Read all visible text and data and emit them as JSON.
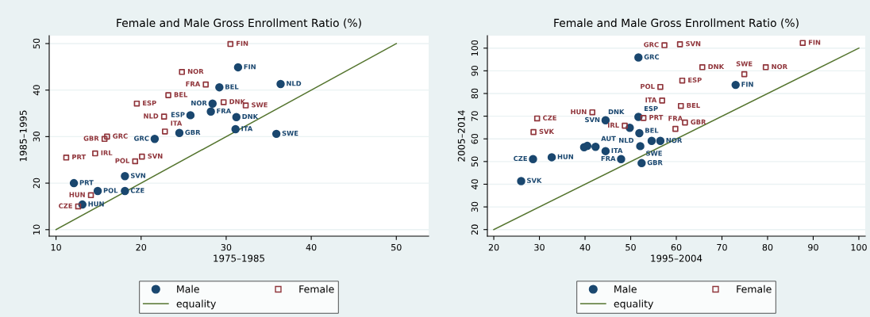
{
  "chart_data": [
    {
      "type": "scatter",
      "title": "Female and Male Gross Enrollment Ratio (%)",
      "xlabel": "1975–1985",
      "ylabel": "1985–1995",
      "xlim": [
        9.2,
        53.8
      ],
      "ylim": [
        8.6,
        51.7
      ],
      "xticks": [
        10,
        20,
        30,
        40,
        50
      ],
      "yticks": [
        10,
        20,
        30,
        40,
        50
      ],
      "grid": "y",
      "legend": "bottom",
      "series": [
        {
          "name": "Male",
          "color": "#1a476f",
          "marker": "circle",
          "x": [
            31.4,
            29.2,
            36.4,
            28.4,
            28.2,
            25.8,
            31.2,
            31.1,
            35.9,
            24.5,
            21.6,
            18.1,
            12.1,
            14.9,
            18.1,
            13.1
          ],
          "values": [
            44.9,
            40.6,
            41.3,
            37.1,
            35.4,
            34.6,
            34.2,
            31.6,
            30.6,
            30.8,
            29.5,
            21.5,
            20.0,
            18.3,
            18.3,
            15.4
          ],
          "value_labels": [
            "FIN",
            "BEL",
            "NLD",
            "NOR",
            "FRA",
            "ESP",
            "DNK",
            "ITA",
            "SWE",
            "GBR",
            "GRC",
            "SVN",
            "PRT",
            "POL",
            "CZE",
            "HUN"
          ]
        },
        {
          "name": "Female",
          "color": "#90353b",
          "marker": "square",
          "x": [
            30.5,
            24.8,
            27.6,
            23.2,
            19.5,
            29.7,
            32.3,
            22.7,
            22.8,
            16.0,
            15.7,
            11.2,
            14.6,
            20.1,
            19.3,
            14.1,
            12.6
          ],
          "values": [
            49.9,
            43.9,
            41.2,
            38.9,
            37.1,
            37.4,
            36.7,
            34.3,
            31.1,
            30.0,
            29.5,
            25.5,
            26.4,
            25.7,
            24.7,
            17.4,
            15.0
          ],
          "value_labels": [
            "FIN",
            "NOR",
            "FRA",
            "BEL",
            "ESP",
            "DNK",
            "SWE",
            "NLD",
            "ITA",
            "GRC",
            "GBR",
            "PRT",
            "IRL",
            "SVN",
            "POL",
            "HUN",
            "CZE"
          ]
        },
        {
          "name": "equality",
          "type": "line",
          "color": "#55752f",
          "marker": "none",
          "x": [
            10,
            50
          ],
          "values": [
            10,
            50
          ]
        }
      ]
    },
    {
      "type": "scatter",
      "title": "Female and Male Gross Enrollment Ratio (%)",
      "xlabel": "1995–2004",
      "ylabel": "2005–2014",
      "xlim": [
        18.6,
        101.4
      ],
      "ylim": [
        17.1,
        105.5
      ],
      "xticks": [
        20,
        30,
        40,
        50,
        60,
        70,
        80,
        90,
        100
      ],
      "yticks": [
        20,
        30,
        40,
        50,
        60,
        70,
        80,
        90,
        100
      ],
      "grid": "y",
      "legend": "bottom",
      "series": [
        {
          "name": "Male",
          "color": "#1a476f",
          "marker": "circle",
          "x": [
            51.7,
            26.0,
            28.6,
            32.7,
            39.8,
            40.5,
            42.3,
            44.5,
            47.9,
            44.5,
            49.8,
            51.7,
            51.9,
            52.1,
            54.6,
            56.5,
            52.4,
            73.0
          ],
          "values": [
            95.9,
            41.4,
            51.1,
            51.9,
            56.3,
            56.9,
            56.5,
            54.6,
            51.1,
            68.2,
            64.9,
            69.7,
            62.5,
            56.8,
            59.1,
            59.1,
            49.3,
            83.8
          ],
          "value_labels": [
            "GRC",
            "SVK",
            "CZE",
            "HUN",
            null,
            null,
            "AUT",
            "ITA",
            "FRA",
            "SVN",
            "DNK",
            "ESP",
            "NLD",
            "SWE",
            "BEL",
            "NOR",
            "GBR",
            "FIN"
          ]
        },
        {
          "name": "Female",
          "color": "#90353b",
          "marker": "square",
          "x": [
            87.7,
            57.4,
            60.8,
            65.7,
            79.6,
            74.9,
            61.3,
            56.5,
            56.9,
            61.0,
            52.8,
            61.9,
            59.8,
            48.7,
            41.6,
            29.5,
            28.7
          ],
          "values": [
            102.3,
            101.3,
            101.7,
            91.6,
            91.6,
            88.5,
            85.7,
            82.9,
            76.9,
            74.5,
            69.2,
            67.2,
            64.4,
            65.8,
            71.7,
            69.0,
            63.0
          ],
          "value_labels": [
            "FIN",
            "GRC",
            "SVN",
            "DNK",
            "NOR",
            "SWE",
            "ESP",
            "POL",
            "ITA",
            "BEL",
            "PRT",
            "GBR",
            "FRA",
            "IRL",
            "HUN",
            "CZE",
            "SVK"
          ]
        },
        {
          "name": "equality",
          "type": "line",
          "color": "#55752f",
          "marker": "none",
          "x": [
            20,
            100
          ],
          "values": [
            20,
            100
          ]
        }
      ]
    }
  ]
}
